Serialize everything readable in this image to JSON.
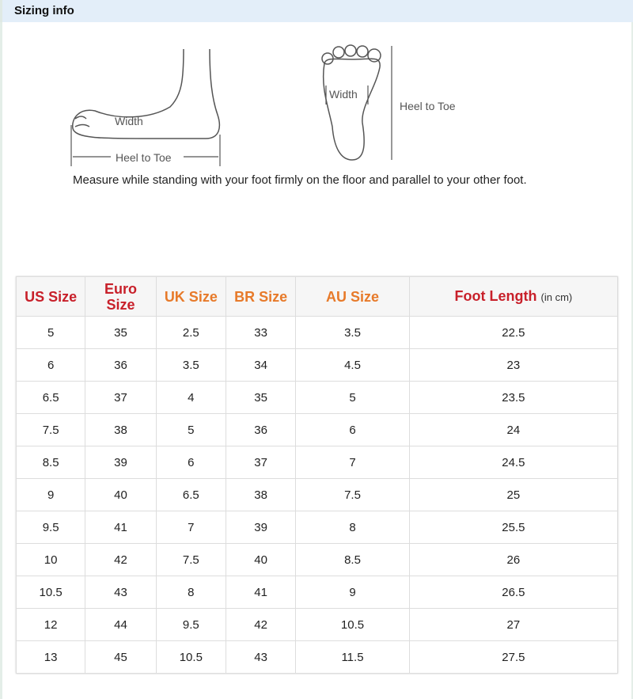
{
  "header": {
    "title": "Sizing info"
  },
  "diagram": {
    "side_width": "Width",
    "side_length": "Heel to Toe",
    "top_width": "Width",
    "top_length": "Heel to Toe"
  },
  "note": "Measure while standing with your foot firmly on the floor and parallel to your other foot.",
  "colors": {
    "header_red": "#c8202a",
    "header_orange": "#e77a2a",
    "title_bar": "#e3eef9"
  },
  "table": {
    "headers": [
      {
        "label": "US Size",
        "color": "red"
      },
      {
        "label": "Euro Size",
        "color": "red"
      },
      {
        "label": "UK Size",
        "color": "orange"
      },
      {
        "label": "BR Size",
        "color": "orange"
      },
      {
        "label": "AU Size",
        "color": "orange"
      },
      {
        "label": "Foot Length",
        "unit": "(in cm)",
        "color": "red"
      }
    ],
    "rows": [
      [
        "5",
        "35",
        "2.5",
        "33",
        "3.5",
        "22.5"
      ],
      [
        "6",
        "36",
        "3.5",
        "34",
        "4.5",
        "23"
      ],
      [
        "6.5",
        "37",
        "4",
        "35",
        "5",
        "23.5"
      ],
      [
        "7.5",
        "38",
        "5",
        "36",
        "6",
        "24"
      ],
      [
        "8.5",
        "39",
        "6",
        "37",
        "7",
        "24.5"
      ],
      [
        "9",
        "40",
        "6.5",
        "38",
        "7.5",
        "25"
      ],
      [
        "9.5",
        "41",
        "7",
        "39",
        "8",
        "25.5"
      ],
      [
        "10",
        "42",
        "7.5",
        "40",
        "8.5",
        "26"
      ],
      [
        "10.5",
        "43",
        "8",
        "41",
        "9",
        "26.5"
      ],
      [
        "12",
        "44",
        "9.5",
        "42",
        "10.5",
        "27"
      ],
      [
        "13",
        "45",
        "10.5",
        "43",
        "11.5",
        "27.5"
      ]
    ]
  }
}
